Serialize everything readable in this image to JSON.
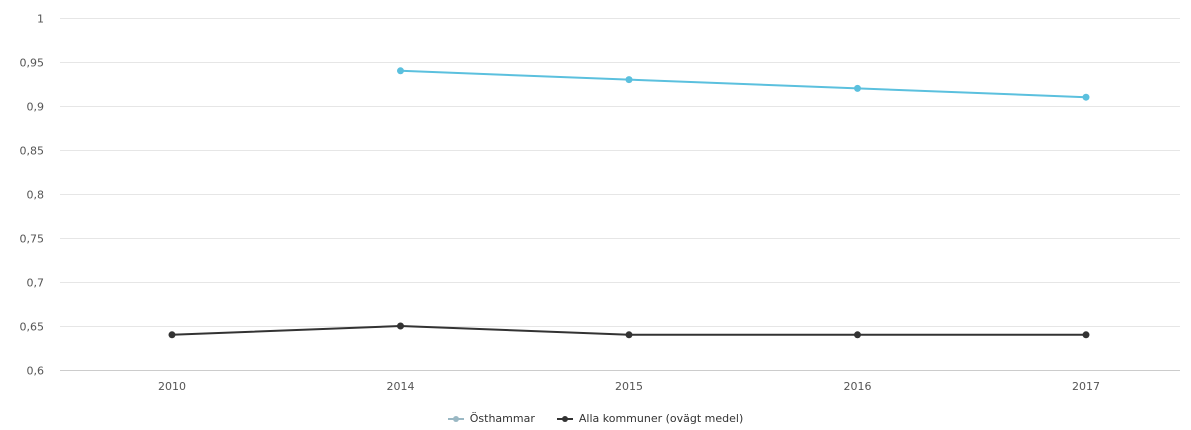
{
  "chart_data": {
    "type": "line",
    "title": "",
    "xlabel": "",
    "ylabel": "",
    "categories": [
      "2010",
      "2014",
      "2015",
      "2016",
      "2017"
    ],
    "ylim": [
      0.6,
      1
    ],
    "yticks": [
      "0,6",
      "0,65",
      "0,7",
      "0,75",
      "0,8",
      "0,85",
      "0,9",
      "0,95",
      "1"
    ],
    "grid": true,
    "legend_position": "bottom-center",
    "series": [
      {
        "name": "Östhammar",
        "color": "#5bc0de",
        "values": [
          null,
          0.94,
          0.93,
          0.92,
          0.91
        ]
      },
      {
        "name": "Alla kommuner (ovägt medel)",
        "color": "#333333",
        "values": [
          0.64,
          0.65,
          0.64,
          0.64,
          0.64
        ]
      }
    ]
  }
}
